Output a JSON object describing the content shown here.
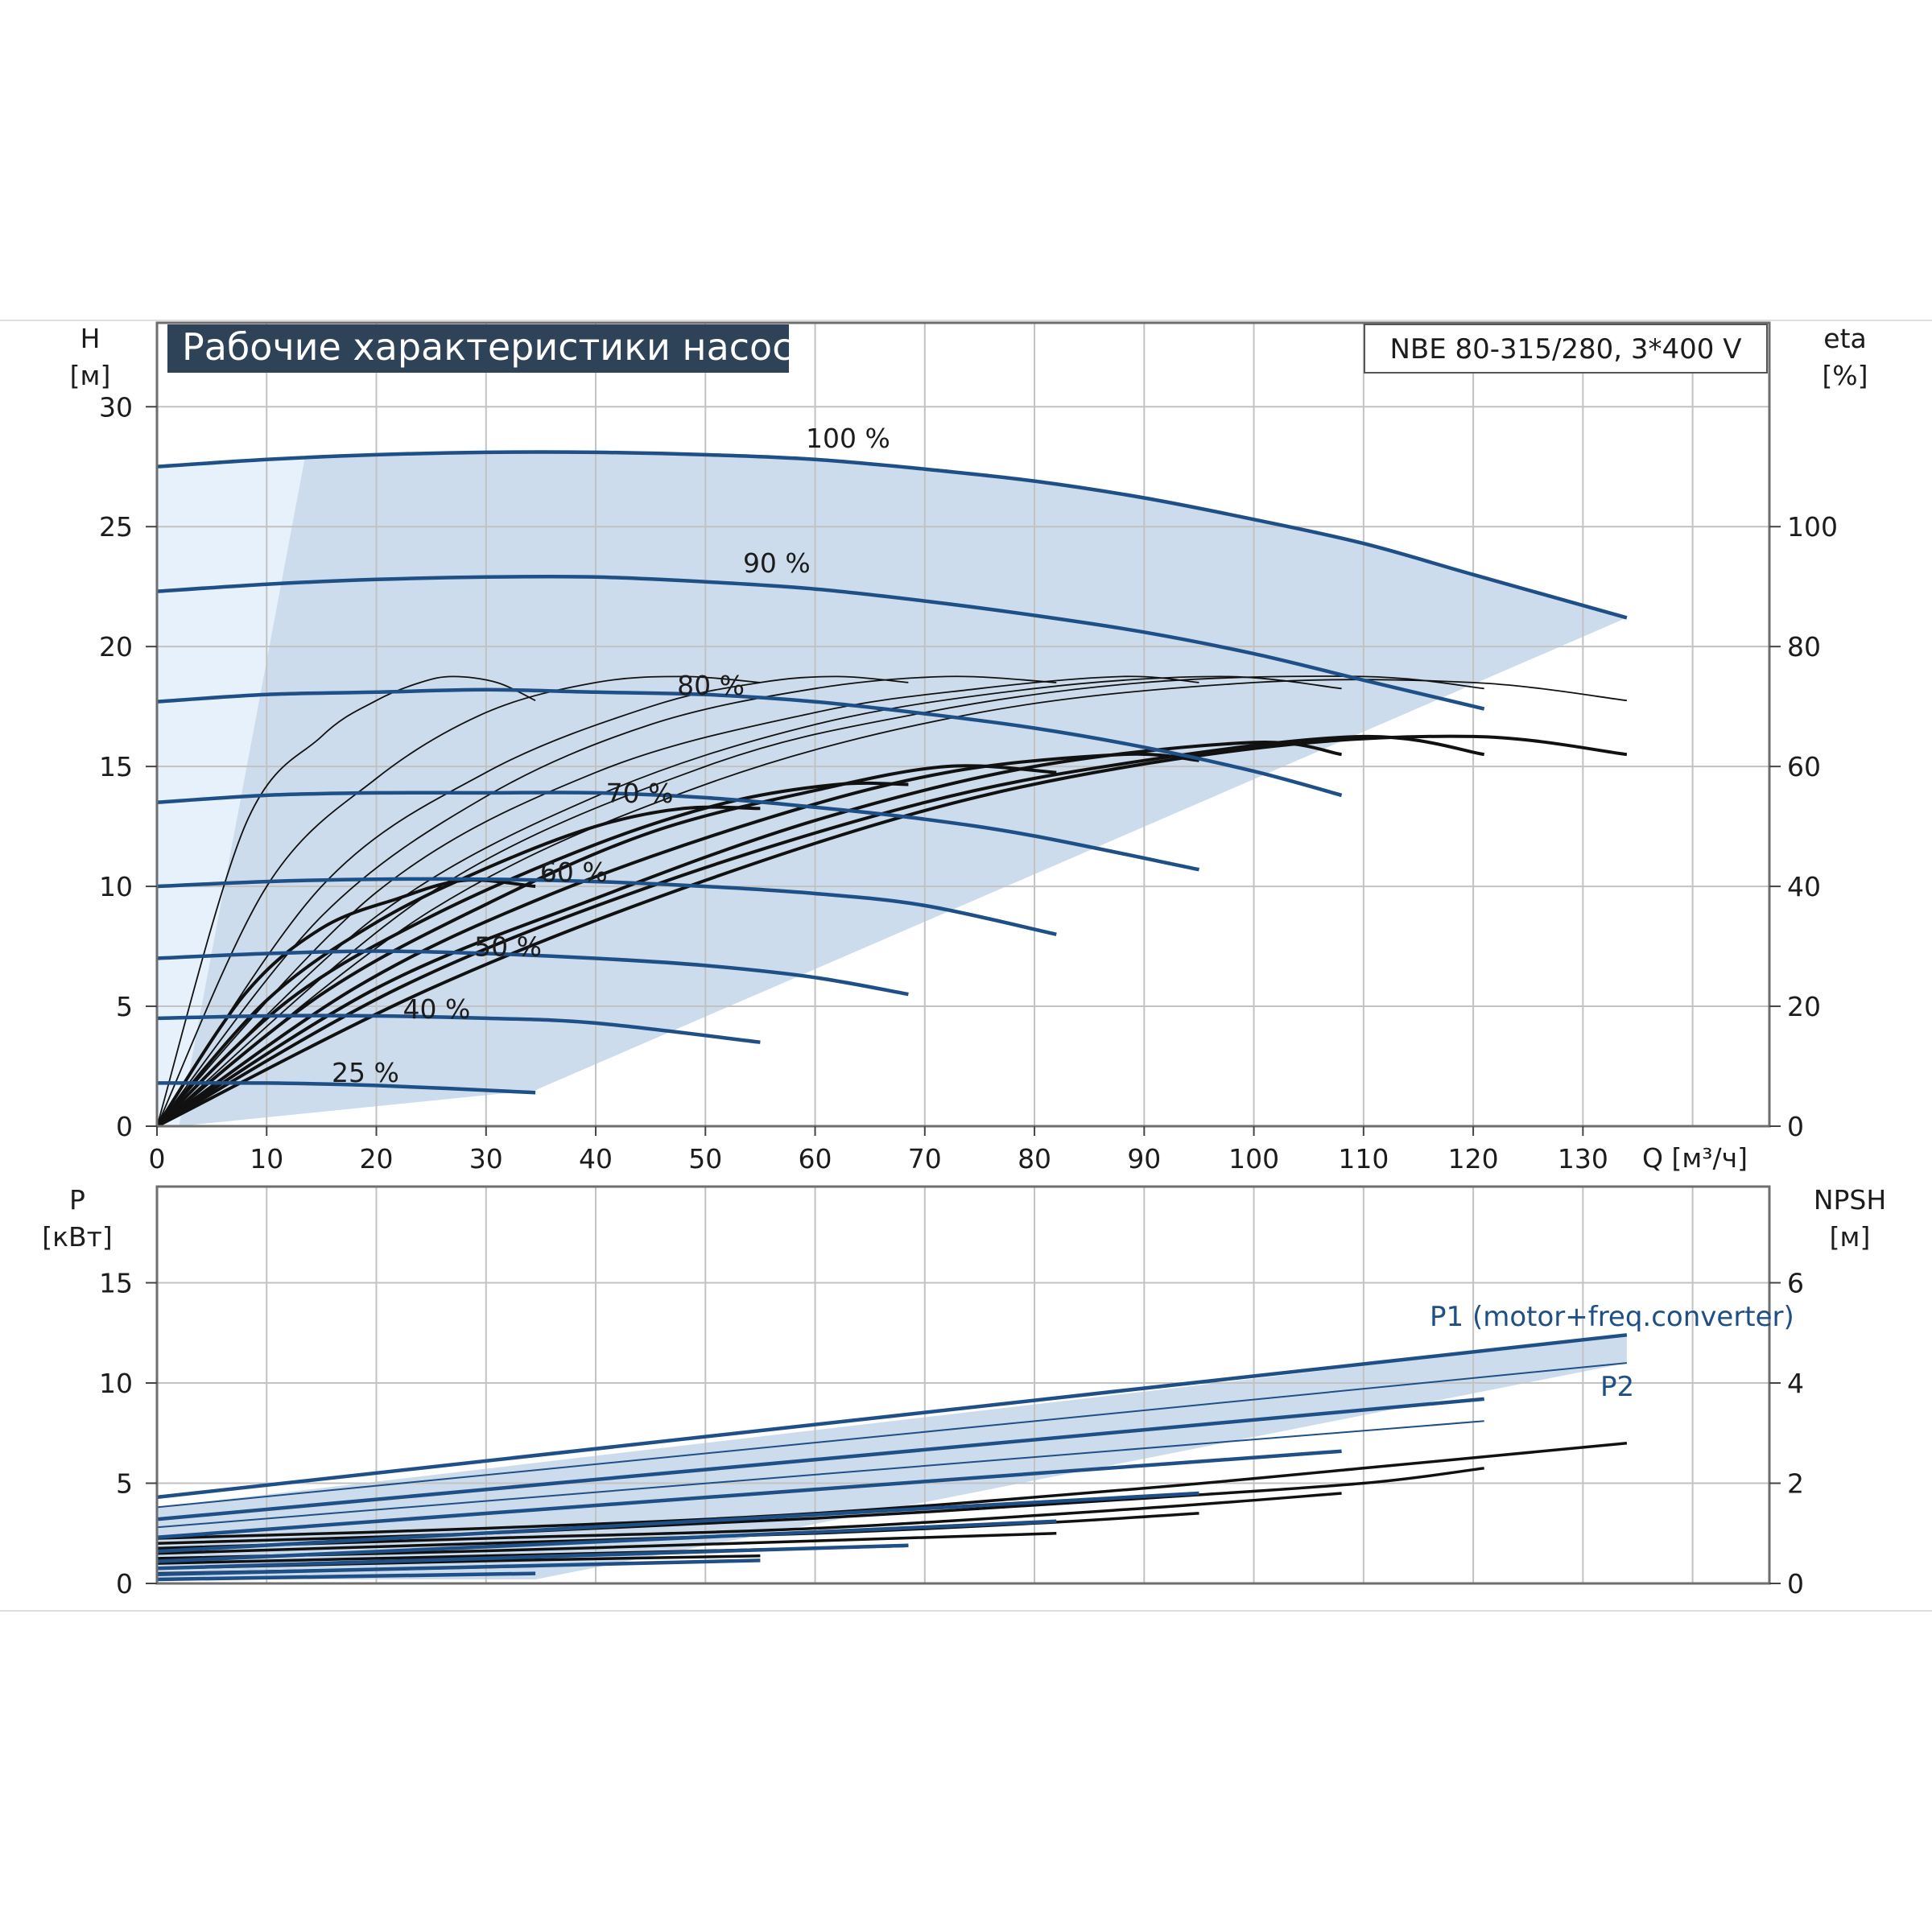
{
  "title": "Рабочие характеристики насоса",
  "model": "NBE 80-315/280, 3*400 V",
  "colors": {
    "curve_blue": "#1e4f86",
    "area_fill": "#cddcec",
    "area_light": "#e6f1fb",
    "grid": "#c2c2c2",
    "title_bg": "#2e4258",
    "black": "#111111"
  },
  "chart_data": [
    {
      "type": "line",
      "name": "head",
      "left_axis": {
        "label": "H",
        "unit": "[м]",
        "ylim": [
          0,
          33.5
        ],
        "ticks": [
          "0",
          "5",
          "10",
          "15",
          "20",
          "25",
          "30"
        ]
      },
      "right_axis": {
        "label": "eta",
        "unit": "[%]",
        "ylim": [
          0,
          134
        ],
        "ticks": [
          "0",
          "20",
          "40",
          "60",
          "80",
          "100"
        ]
      },
      "x_axis": {
        "label": "Q [м³/ч]",
        "xlim": [
          0,
          147
        ],
        "ticks": [
          "0",
          "10",
          "20",
          "30",
          "40",
          "50",
          "60",
          "70",
          "80",
          "90",
          "100",
          "110",
          "120",
          "130"
        ]
      },
      "grid": true,
      "operating_area_boundary": [
        [
          2,
          0
        ],
        [
          13.5,
          27.9
        ],
        [
          134,
          21.2
        ],
        [
          34.5,
          1.5
        ]
      ],
      "speed_curves": [
        {
          "label": "100 %",
          "label_at": [
            63,
            28.3
          ],
          "x": [
            0,
            10,
            20,
            30,
            40,
            50,
            60,
            70,
            80,
            90,
            100,
            110,
            120,
            134
          ],
          "y": [
            27.5,
            27.8,
            28.0,
            28.1,
            28.1,
            28.0,
            27.8,
            27.4,
            26.9,
            26.2,
            25.3,
            24.3,
            23.0,
            21.2
          ]
        },
        {
          "label": "90 %",
          "label_at": [
            56.5,
            23.1
          ],
          "x": [
            0,
            10,
            20,
            30,
            40,
            50,
            60,
            70,
            80,
            90,
            100,
            110,
            121
          ],
          "y": [
            22.3,
            22.6,
            22.8,
            22.9,
            22.9,
            22.7,
            22.4,
            21.9,
            21.3,
            20.6,
            19.7,
            18.6,
            17.4
          ]
        },
        {
          "label": "80 %",
          "label_at": [
            50.5,
            18.0
          ],
          "x": [
            0,
            10,
            20,
            30,
            40,
            50,
            60,
            70,
            80,
            90,
            100,
            108
          ],
          "y": [
            17.7,
            18.0,
            18.1,
            18.2,
            18.1,
            18.0,
            17.7,
            17.2,
            16.6,
            15.8,
            14.8,
            13.8
          ]
        },
        {
          "label": "70 %",
          "label_at": [
            44,
            13.5
          ],
          "x": [
            0,
            10,
            20,
            30,
            40,
            50,
            60,
            70,
            80,
            95
          ],
          "y": [
            13.5,
            13.8,
            13.9,
            13.9,
            13.9,
            13.7,
            13.3,
            12.8,
            12.1,
            10.7
          ]
        },
        {
          "label": "60 %",
          "label_at": [
            38,
            10.2
          ],
          "x": [
            0,
            10,
            20,
            30,
            40,
            50,
            60,
            70,
            82
          ],
          "y": [
            10.0,
            10.2,
            10.3,
            10.3,
            10.2,
            10.0,
            9.7,
            9.2,
            8.0
          ]
        },
        {
          "label": "50 %",
          "label_at": [
            32,
            7.1
          ],
          "x": [
            0,
            10,
            20,
            30,
            40,
            50,
            60,
            68.5
          ],
          "y": [
            7.0,
            7.2,
            7.3,
            7.2,
            7.0,
            6.7,
            6.2,
            5.5
          ]
        },
        {
          "label": "40 %",
          "label_at": [
            25.5,
            4.5
          ],
          "x": [
            0,
            10,
            20,
            30,
            40,
            55
          ],
          "y": [
            4.5,
            4.6,
            4.6,
            4.5,
            4.3,
            3.5
          ]
        },
        {
          "label": "25 %",
          "label_at": [
            19,
            1.85
          ],
          "x": [
            0,
            10,
            20,
            34.5
          ],
          "y": [
            1.8,
            1.8,
            1.7,
            1.4
          ]
        }
      ],
      "efficiency_curves": {
        "thin": [
          {
            "x": [
              0,
              8,
              15,
              20,
              24,
              27,
              31,
              34.5
            ],
            "y": [
              0,
              50,
              65,
              71,
              74,
              75,
              74,
              71
            ]
          },
          {
            "x": [
              0,
              10,
              20,
              30,
              40,
              48,
              55
            ],
            "y": [
              0,
              40,
              58,
              69,
              74,
              75,
              74
            ]
          },
          {
            "x": [
              0,
              15,
              30,
              45,
              55,
              62,
              68.5
            ],
            "y": [
              0,
              40,
              59,
              70,
              74,
              75,
              74
            ]
          },
          {
            "x": [
              0,
              15,
              30,
              45,
              60,
              72,
              82
            ],
            "y": [
              0,
              35,
              55,
              67,
              73,
              75,
              74
            ]
          },
          {
            "x": [
              0,
              20,
              40,
              60,
              75,
              88,
              95
            ],
            "y": [
              0,
              39,
              59,
              69,
              73,
              75,
              74
            ]
          },
          {
            "x": [
              0,
              20,
              40,
              60,
              80,
              97,
              108
            ],
            "y": [
              0,
              35,
              55,
              67,
              73,
              75,
              73
            ]
          },
          {
            "x": [
              0,
              25,
              50,
              70,
              90,
              110,
              121
            ],
            "y": [
              0,
              39,
              60,
              69,
              74,
              75,
              73
            ]
          },
          {
            "x": [
              0,
              25,
              50,
              75,
              100,
              120,
              134
            ],
            "y": [
              0,
              36,
              57,
              69,
              74,
              74,
              71
            ]
          }
        ],
        "thick": [
          {
            "x": [
              0,
              8,
              15,
              22,
              28,
              34.5
            ],
            "y": [
              0,
              22,
              33,
              38,
              41,
              40
            ]
          },
          {
            "x": [
              0,
              10,
              20,
              30,
              40,
              48,
              55
            ],
            "y": [
              0,
              21,
              34,
              43,
              50,
              53,
              53
            ]
          },
          {
            "x": [
              0,
              12,
              25,
              40,
              52,
              62,
              68.5
            ],
            "y": [
              0,
              21,
              35,
              47,
              54,
              57,
              57
            ]
          },
          {
            "x": [
              0,
              15,
              30,
              45,
              60,
              72,
              82
            ],
            "y": [
              0,
              22,
              37,
              49,
              56,
              60,
              59
            ]
          },
          {
            "x": [
              0,
              18,
              35,
              55,
              72,
              88,
              95
            ],
            "y": [
              0,
              23,
              38,
              51,
              59,
              62,
              61
            ]
          },
          {
            "x": [
              0,
              20,
              40,
              60,
              80,
              100,
              108
            ],
            "y": [
              0,
              23,
              38,
              51,
              60,
              64,
              62
            ]
          },
          {
            "x": [
              0,
              22,
              45,
              70,
              90,
              110,
              121
            ],
            "y": [
              0,
              23,
              40,
              54,
              61,
              65,
              62
            ]
          },
          {
            "x": [
              0,
              25,
              50,
              75,
              100,
              120,
              134
            ],
            "y": [
              0,
              23,
              41,
              55,
              63,
              65,
              62
            ]
          }
        ]
      }
    },
    {
      "type": "line",
      "name": "power",
      "left_axis": {
        "label": "P",
        "unit": "[кВт]",
        "ylim": [
          0,
          19.8
        ],
        "ticks": [
          "0",
          "5",
          "10",
          "15"
        ]
      },
      "right_axis": {
        "label": "NPSH",
        "unit": "[м]",
        "ylim": [
          0,
          7.92
        ],
        "ticks": [
          "0",
          "2",
          "4",
          "6"
        ]
      },
      "x_axis": {
        "xlim": [
          0,
          147
        ]
      },
      "grid": true,
      "operating_area_boundary": [
        [
          0,
          3.8
        ],
        [
          134,
          12.4
        ],
        [
          134,
          11.0
        ],
        [
          34.5,
          0.2
        ],
        [
          0,
          0.2
        ]
      ],
      "labels": {
        "P1": "P1 (motor+freq.converter)",
        "P2": "P2"
      },
      "p1_curves": [
        {
          "x": [
            0,
            134
          ],
          "y": [
            4.3,
            12.4
          ]
        },
        {
          "x": [
            0,
            121
          ],
          "y": [
            3.2,
            9.2
          ]
        },
        {
          "x": [
            0,
            108
          ],
          "y": [
            2.3,
            6.6
          ]
        },
        {
          "x": [
            0,
            95
          ],
          "y": [
            1.6,
            4.5
          ]
        },
        {
          "x": [
            0,
            82
          ],
          "y": [
            1.1,
            3.1
          ]
        },
        {
          "x": [
            0,
            68.5
          ],
          "y": [
            0.75,
            1.9
          ]
        },
        {
          "x": [
            0,
            55
          ],
          "y": [
            0.45,
            1.15
          ]
        },
        {
          "x": [
            0,
            34.5
          ],
          "y": [
            0.2,
            0.5
          ]
        }
      ],
      "p2_curves": [
        {
          "x": [
            0,
            134
          ],
          "y": [
            3.8,
            11.0
          ]
        },
        {
          "x": [
            0,
            121
          ],
          "y": [
            2.8,
            8.1
          ]
        }
      ],
      "npsh_curves": [
        {
          "x": [
            0,
            30,
            60,
            90,
            110,
            134
          ],
          "y": [
            0.9,
            1.1,
            1.4,
            1.9,
            2.3,
            2.8
          ]
        },
        {
          "x": [
            0,
            30,
            60,
            90,
            110,
            121
          ],
          "y": [
            0.8,
            1.0,
            1.3,
            1.7,
            2.0,
            2.3
          ]
        },
        {
          "x": [
            0,
            30,
            60,
            90,
            108
          ],
          "y": [
            0.7,
            0.9,
            1.1,
            1.5,
            1.8
          ]
        },
        {
          "x": [
            0,
            30,
            60,
            80,
            95
          ],
          "y": [
            0.6,
            0.8,
            1.0,
            1.2,
            1.4
          ]
        },
        {
          "x": [
            0,
            30,
            60,
            82
          ],
          "y": [
            0.5,
            0.65,
            0.85,
            1.0
          ]
        },
        {
          "x": [
            0,
            30,
            50,
            68.5
          ],
          "y": [
            0.4,
            0.55,
            0.65,
            0.75
          ]
        },
        {
          "x": [
            0,
            30,
            55
          ],
          "y": [
            0.3,
            0.45,
            0.55
          ]
        },
        {
          "x": [
            0,
            20,
            34.5
          ],
          "y": [
            0.2,
            0.28,
            0.35
          ]
        }
      ]
    }
  ]
}
